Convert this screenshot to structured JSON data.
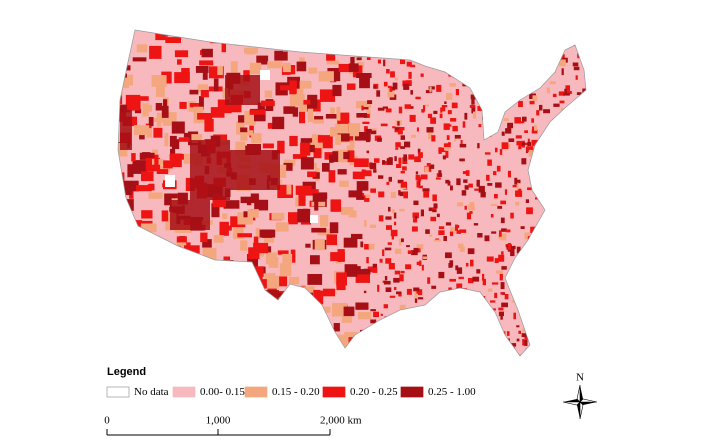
{
  "legend": {
    "title": "Legend",
    "items": [
      {
        "label": "No data",
        "color": "#ffffff"
      },
      {
        "label": "0.00- 0.15",
        "color": "#f7b9bd"
      },
      {
        "label": "0.15 - 0.20",
        "color": "#f4a77f"
      },
      {
        "label": "0.20 - 0.25",
        "color": "#ee1414"
      },
      {
        "label": "0.25 - 1.00",
        "color": "#a50f15"
      }
    ]
  },
  "scale_bar": {
    "labels": [
      "0",
      "1,000",
      "2,000 km"
    ]
  },
  "north_arrow": {
    "label": "N"
  }
}
